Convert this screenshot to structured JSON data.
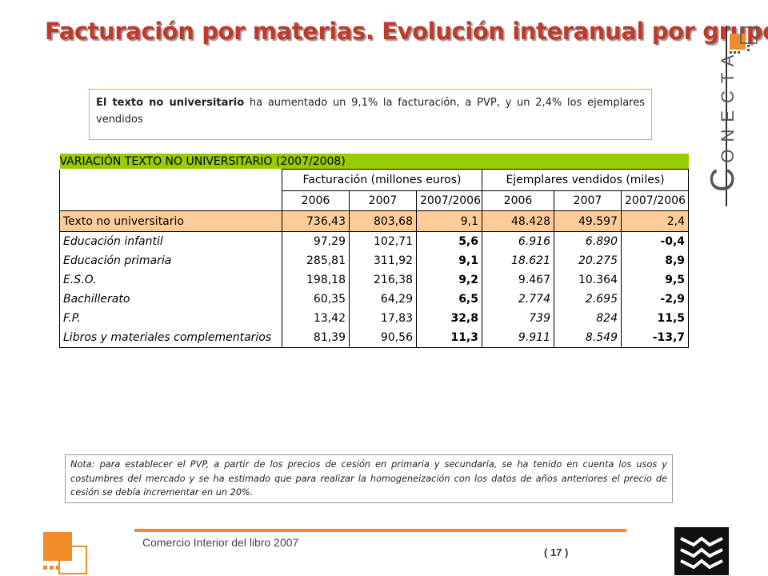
{
  "slide": {
    "title": "Facturación por materias. Evolución interanual por grupos",
    "callout": {
      "bold": "El texto no universitario",
      "rest": " ha aumentado un 9,1% la facturación, a PVP, y un 2,4% los ejemplares vendidos"
    },
    "note": "Nota: para establecer el PVP, a partir de los precios de cesión en primaria y secundaria, se ha tenido en cuenta los usos y costumbres del mercado y se ha estimado que para realizar la homogeneización con los datos de años anteriores el precio de cesión se debía incrementar en un 20%.",
    "footer": "Comercio Interior del libro 2007",
    "page_number": "( 17 )",
    "brand": {
      "initial": "C",
      "rest": "ONECTA"
    },
    "colors": {
      "title": "#c0392b",
      "header_bar": "#99cc00",
      "total_row": "#ffcc99",
      "accent": "#f28c28"
    }
  },
  "table": {
    "caption": "VARIACIÓN TEXTO NO UNIVERSITARIO (2007/2008)",
    "group_headers": [
      "Facturación (millones euros)",
      "Ejemplares vendidos (miles)"
    ],
    "sub_headers": [
      "2006",
      "2007",
      "2007/2006",
      "2006",
      "2007",
      "2007/2006"
    ],
    "total": {
      "label": "Texto no universitario",
      "values": [
        "736,43",
        "803,68",
        "9,1",
        "48.428",
        "49.597",
        "2,4"
      ]
    },
    "rows": [
      {
        "label": "Educación infantil",
        "values": [
          "97,29",
          "102,71",
          "5,6",
          "6.916",
          "6.890",
          "-0,4"
        ]
      },
      {
        "label": "Educación primaria",
        "values": [
          "285,81",
          "311,92",
          "9,1",
          "18.621",
          "20.275",
          "8,9"
        ]
      },
      {
        "label": "E.S.O.",
        "values": [
          "198,18",
          "216,38",
          "9,2",
          "9.467",
          "10.364",
          "9,5"
        ]
      },
      {
        "label": "Bachillerato",
        "values": [
          "60,35",
          "64,29",
          "6,5",
          "2.774",
          "2.695",
          "-2,9"
        ]
      },
      {
        "label": "F.P.",
        "values": [
          "13,42",
          "17,83",
          "32,8",
          "739",
          "824",
          "11,5"
        ]
      },
      {
        "label": "Libros y materiales complementarios",
        "values": [
          "81,39",
          "90,56",
          "11,3",
          "9.911",
          "8.549",
          "-13,7"
        ]
      }
    ]
  }
}
